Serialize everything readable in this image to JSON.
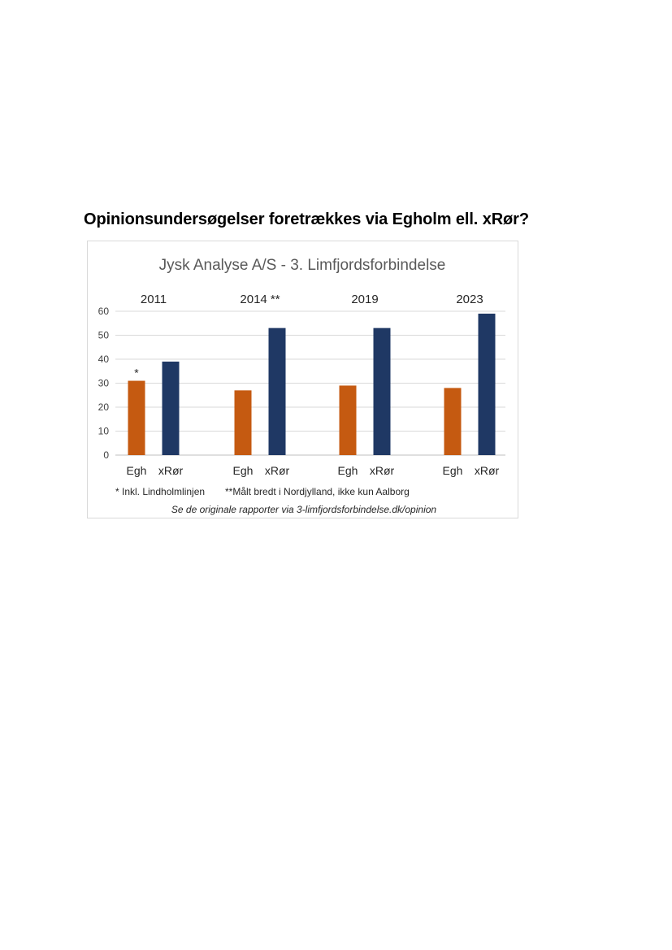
{
  "document": {
    "heading": "Opinionsundersøgelser foretrækkes via Egholm ell. xRør?"
  },
  "chart_data": {
    "type": "bar",
    "title": "Jysk Analyse A/S - 3. Limfjordsforbindelse",
    "groups": [
      {
        "year": "2011",
        "marker": "*",
        "categories": [
          "Egh",
          "xRør"
        ],
        "values": [
          31,
          39
        ]
      },
      {
        "year": "2014 **",
        "marker": "",
        "categories": [
          "Egh",
          "xRør"
        ],
        "values": [
          27,
          53
        ]
      },
      {
        "year": "2019",
        "marker": "",
        "categories": [
          "Egh",
          "xRør"
        ],
        "values": [
          29,
          53
        ]
      },
      {
        "year": "2023",
        "marker": "",
        "categories": [
          "Egh",
          "xRør"
        ],
        "values": [
          28,
          59
        ]
      }
    ],
    "colors": [
      "#c55a11",
      "#1f3864"
    ],
    "ylim": [
      0,
      60
    ],
    "yticks": [
      0,
      10,
      20,
      30,
      40,
      50,
      60
    ],
    "grid": true,
    "xlabel": "",
    "ylabel": "",
    "footnotes": [
      "* Inkl. Lindholmlinjen",
      "**Målt bredt i Nordjylland, ikke kun Aalborg"
    ],
    "source": "Se de originale rapporter via 3-limfjordsforbindelse.dk/opinion"
  }
}
